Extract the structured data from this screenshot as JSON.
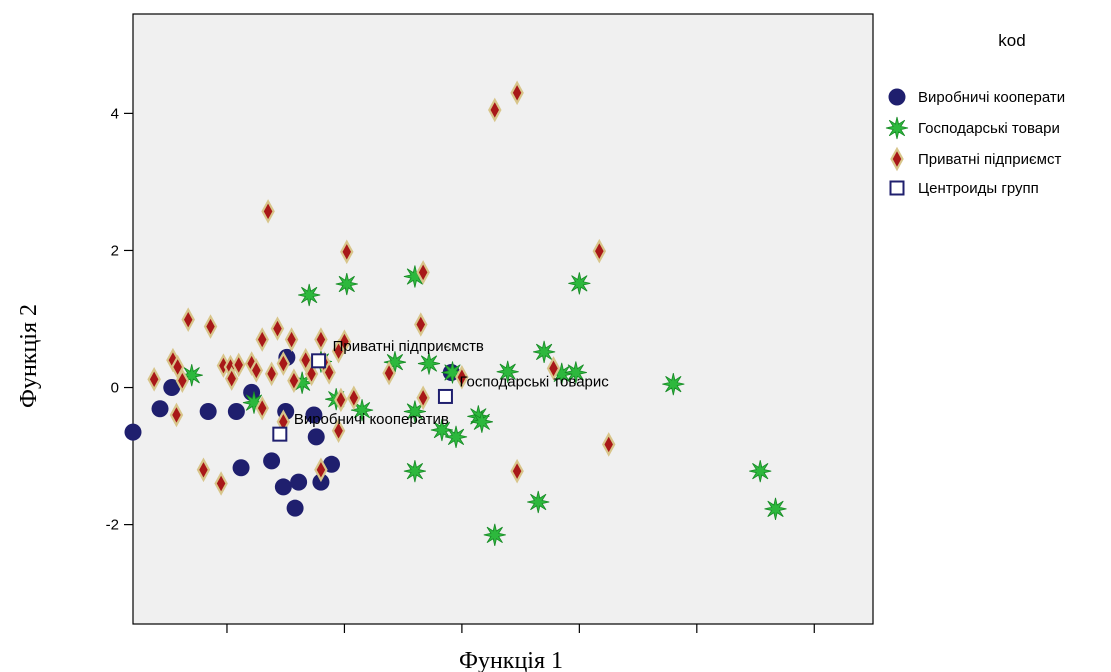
{
  "chart_data": {
    "type": "scatter",
    "xlabel": "Функція 1",
    "ylabel": "Функція 2",
    "xlim": [
      -2.8,
      3.5
    ],
    "ylim": [
      -3.45,
      5.45
    ],
    "xticks": [
      -2,
      -1,
      0,
      1,
      2,
      3
    ],
    "xtick_labels": [
      "",
      "",
      "",
      "",
      "",
      ""
    ],
    "yticks": [
      -2,
      0,
      2,
      4
    ],
    "ytick_labels": [
      "-2",
      "0",
      "2",
      "4"
    ],
    "grid": false,
    "plot_background": "#f0f0f0",
    "legend": {
      "title": "kod",
      "placement": "right",
      "entries": [
        "Виробничі кооперати",
        "Господарські товари",
        "Приватні підприємст",
        "Центроиды групп"
      ]
    },
    "series": [
      {
        "name": "Виробничі кооператив",
        "marker": "circle",
        "color": "#1f1f6e",
        "points": [
          [
            -2.8,
            -0.65
          ],
          [
            -2.57,
            -0.31
          ],
          [
            -2.47,
            0.0
          ],
          [
            -2.16,
            -0.35
          ],
          [
            -1.92,
            -0.35
          ],
          [
            -1.79,
            -0.07
          ],
          [
            -1.88,
            -1.17
          ],
          [
            -1.62,
            -1.07
          ],
          [
            -1.5,
            -0.35
          ],
          [
            -1.52,
            -1.45
          ],
          [
            -1.39,
            -1.38
          ],
          [
            -1.42,
            -1.76
          ],
          [
            -1.26,
            -0.4
          ],
          [
            -1.24,
            -0.72
          ],
          [
            -1.2,
            -1.38
          ],
          [
            -1.11,
            -1.12
          ],
          [
            -1.49,
            0.44
          ],
          [
            -0.09,
            0.22
          ]
        ]
      },
      {
        "name": "Господарські товарис",
        "marker": "star",
        "color": "#2db83d",
        "points": [
          [
            -2.3,
            0.18
          ],
          [
            -1.77,
            -0.22
          ],
          [
            -1.36,
            0.07
          ],
          [
            -1.3,
            1.35
          ],
          [
            -1.2,
            0.38
          ],
          [
            -1.07,
            -0.17
          ],
          [
            -0.98,
            1.51
          ],
          [
            -0.85,
            -0.33
          ],
          [
            -0.57,
            0.37
          ],
          [
            -0.4,
            1.62
          ],
          [
            -0.4,
            -0.35
          ],
          [
            -0.4,
            -1.22
          ],
          [
            -0.28,
            0.35
          ],
          [
            -0.17,
            -0.62
          ],
          [
            -0.08,
            0.22
          ],
          [
            -0.05,
            -0.72
          ],
          [
            0.14,
            -0.42
          ],
          [
            0.17,
            -0.5
          ],
          [
            0.28,
            -2.15
          ],
          [
            0.39,
            0.23
          ],
          [
            0.7,
            0.52
          ],
          [
            0.65,
            -1.67
          ],
          [
            0.85,
            0.2
          ],
          [
            0.97,
            0.22
          ],
          [
            1.0,
            1.52
          ],
          [
            1.8,
            0.05
          ],
          [
            2.54,
            -1.22
          ],
          [
            2.67,
            -1.77
          ]
        ]
      },
      {
        "name": "Приватні підприємств",
        "marker": "diamond",
        "color": "#a81818",
        "points": [
          [
            -2.62,
            0.12
          ],
          [
            -2.46,
            0.4
          ],
          [
            -2.42,
            0.3
          ],
          [
            -2.38,
            0.1
          ],
          [
            -2.43,
            -0.4
          ],
          [
            -2.33,
            0.99
          ],
          [
            -2.2,
            -1.2
          ],
          [
            -2.14,
            0.89
          ],
          [
            -2.03,
            0.32
          ],
          [
            -1.97,
            0.3
          ],
          [
            -1.96,
            0.13
          ],
          [
            -2.05,
            -1.4
          ],
          [
            -1.9,
            0.33
          ],
          [
            -1.79,
            0.35
          ],
          [
            -1.75,
            0.25
          ],
          [
            -1.7,
            0.7
          ],
          [
            -1.7,
            -0.3
          ],
          [
            -1.62,
            0.2
          ],
          [
            -1.57,
            0.86
          ],
          [
            -1.52,
            0.35
          ],
          [
            -1.45,
            0.7
          ],
          [
            -1.43,
            0.1
          ],
          [
            -1.33,
            0.4
          ],
          [
            -1.28,
            0.2
          ],
          [
            -1.2,
            0.7
          ],
          [
            -1.17,
            0.35
          ],
          [
            -1.13,
            0.22
          ],
          [
            -1.05,
            0.53
          ],
          [
            -1.03,
            -0.18
          ],
          [
            -1.0,
            0.67
          ],
          [
            -0.92,
            -0.15
          ],
          [
            -0.98,
            1.98
          ],
          [
            -0.62,
            0.21
          ],
          [
            -0.35,
            0.92
          ],
          [
            -0.33,
            -0.15
          ],
          [
            -0.33,
            1.68
          ],
          [
            -1.05,
            -0.63
          ],
          [
            -1.2,
            -1.2
          ],
          [
            -1.52,
            -0.5
          ],
          [
            -1.65,
            2.57
          ],
          [
            0.28,
            4.05
          ],
          [
            0.47,
            4.3
          ],
          [
            1.17,
            1.99
          ],
          [
            0.78,
            0.28
          ],
          [
            1.25,
            -0.83
          ],
          [
            0.47,
            -1.22
          ],
          [
            0.0,
            0.15
          ]
        ]
      },
      {
        "name": "Центроиды групп",
        "marker": "square",
        "color": "#1f1f6e",
        "points": [
          [
            -1.55,
            -0.68
          ],
          [
            -1.22,
            0.39
          ],
          [
            -0.14,
            -0.13
          ]
        ],
        "labels": [
          "Виробничі кооператив",
          "Приватні підприємств",
          "Господарські товарис"
        ]
      }
    ]
  }
}
